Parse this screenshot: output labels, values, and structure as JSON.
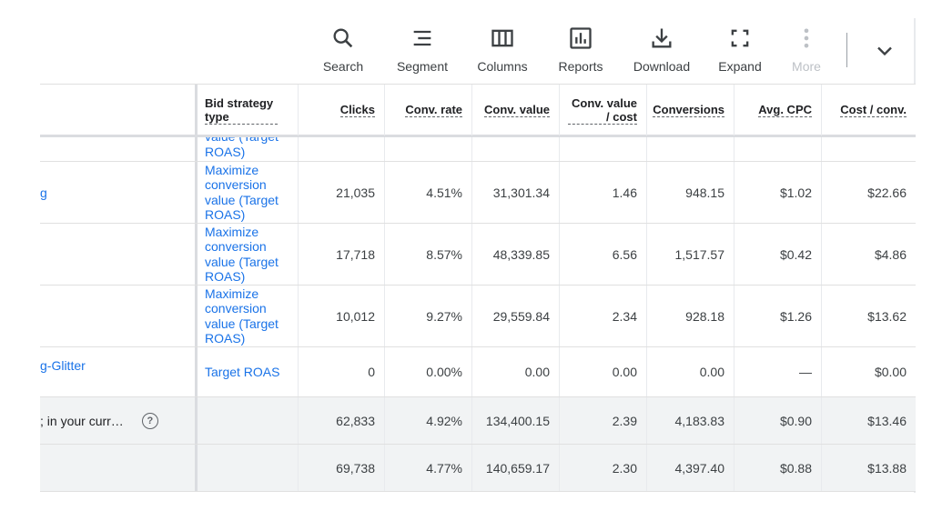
{
  "toolbar": {
    "search": "Search",
    "segment": "Segment",
    "columns": "Columns",
    "reports": "Reports",
    "download": "Download",
    "expand": "Expand",
    "more": "More"
  },
  "headers": {
    "bid_strategy": "Bid strategy type",
    "clicks": "Clicks",
    "conv_rate": "Conv. rate",
    "conv_value": "Conv. value",
    "conv_value_cost": "Conv. value / cost",
    "conversions": "Conversions",
    "avg_cpc": "Avg. CPC",
    "cost_conv": "Cost / conv."
  },
  "rows": [
    {
      "name": "",
      "strategy": "value (Target ROAS)",
      "clicks": "",
      "conv_rate": "",
      "conv_value": "",
      "conv_value_cost": "",
      "conversions": "",
      "avg_cpc": "",
      "cost_conv": ""
    },
    {
      "name": "g",
      "strategy": "Maximize conversion value (Target ROAS)",
      "clicks": "21,035",
      "conv_rate": "4.51%",
      "conv_value": "31,301.34",
      "conv_value_cost": "1.46",
      "conversions": "948.15",
      "avg_cpc": "$1.02",
      "cost_conv": "$22.66"
    },
    {
      "name": "",
      "strategy": "Maximize conversion value (Target ROAS)",
      "clicks": "17,718",
      "conv_rate": "8.57%",
      "conv_value": "48,339.85",
      "conv_value_cost": "6.56",
      "conversions": "1,517.57",
      "avg_cpc": "$0.42",
      "cost_conv": "$4.86"
    },
    {
      "name": "",
      "strategy": "Maximize conversion value (Target ROAS)",
      "clicks": "10,012",
      "conv_rate": "9.27%",
      "conv_value": "29,559.84",
      "conv_value_cost": "2.34",
      "conversions": "928.18",
      "avg_cpc": "$1.26",
      "cost_conv": "$13.62"
    },
    {
      "name": "g-Glitter",
      "strategy": "Target ROAS",
      "clicks": "0",
      "conv_rate": "0.00%",
      "conv_value": "0.00",
      "conv_value_cost": "0.00",
      "conversions": "0.00",
      "avg_cpc": "—",
      "cost_conv": "$0.00"
    }
  ],
  "totals": [
    {
      "name": "; in your curr…",
      "clicks": "62,833",
      "conv_rate": "4.92%",
      "conv_value": "134,400.15",
      "conv_value_cost": "2.39",
      "conversions": "4,183.83",
      "avg_cpc": "$0.90",
      "cost_conv": "$13.46"
    },
    {
      "name": "",
      "clicks": "69,738",
      "conv_rate": "4.77%",
      "conv_value": "140,659.17",
      "conv_value_cost": "2.30",
      "conversions": "4,397.40",
      "avg_cpc": "$0.88",
      "cost_conv": "$13.88"
    }
  ],
  "help_icon_glyph": "?"
}
